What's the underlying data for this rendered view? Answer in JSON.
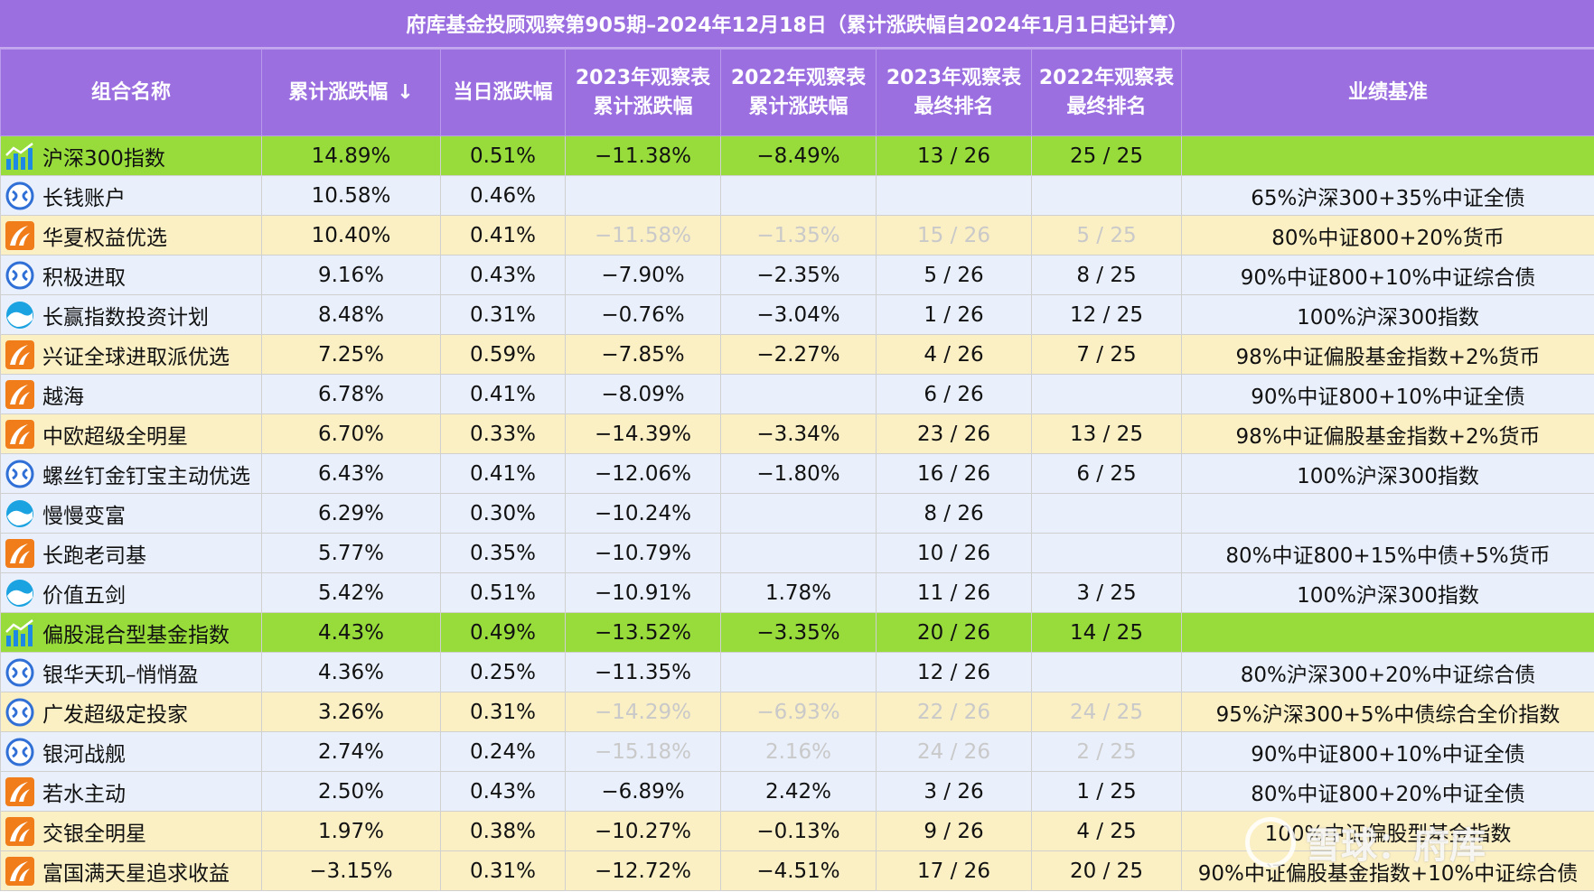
{
  "title": "府库基金投顾观察第905期–2024年12月18日（累计涨跌幅自2024年1月1日起计算）",
  "headers": {
    "name": "组合名称",
    "cumulative": "累计涨跌幅",
    "sort_icon": "↓",
    "daily": "当日涨跌幅",
    "y2023_cum": "2023年观察表 累计涨跌幅",
    "y2022_cum": "2022年观察表 累计涨跌幅",
    "y2023_rank": "2023年观察表 最终排名",
    "y2022_rank": "2022年观察表 最终排名",
    "benchmark": "业绩基准"
  },
  "colors": {
    "header_bg": "#9b6fe0",
    "row_blue": "#e9f0fb",
    "row_yellow": "#fbefc4",
    "row_green": "#98dc3c",
    "muted_text": "#c9c9c9"
  },
  "watermark": {
    "text": "雪球：府库"
  },
  "rows": [
    {
      "icon": "chart-icon",
      "style": "green",
      "name": "沪深300指数",
      "cum": "14.89%",
      "daily": "0.51%",
      "c2023": "−11.38%",
      "c2022": "−8.49%",
      "r2023": "13 / 26",
      "r2022": "25 / 25",
      "bench": "",
      "muted": false
    },
    {
      "icon": "blue-ring-icon",
      "style": "blue",
      "name": "长钱账户",
      "cum": "10.58%",
      "daily": "0.46%",
      "c2023": "",
      "c2022": "",
      "r2023": "",
      "r2022": "",
      "bench": "65%沪深300+35%中证全债",
      "muted": false
    },
    {
      "icon": "orange-swoosh-icon",
      "style": "yellow",
      "name": "华夏权益优选",
      "cum": "10.40%",
      "daily": "0.41%",
      "c2023": "−11.58%",
      "c2022": "−1.35%",
      "r2023": "15 / 26",
      "r2022": "5 / 25",
      "bench": "80%中证800+20%货币",
      "muted": true
    },
    {
      "icon": "blue-ring-icon",
      "style": "blue",
      "name": "积极进取",
      "cum": "9.16%",
      "daily": "0.43%",
      "c2023": "−7.90%",
      "c2022": "−2.35%",
      "r2023": "5 / 26",
      "r2022": "8 / 25",
      "bench": "90%中证800+10%中证综合债",
      "muted": false
    },
    {
      "icon": "wave-icon",
      "style": "blue",
      "name": "长赢指数投资计划",
      "cum": "8.48%",
      "daily": "0.31%",
      "c2023": "−0.76%",
      "c2022": "−3.04%",
      "r2023": "1 / 26",
      "r2022": "12 / 25",
      "bench": "100%沪深300指数",
      "muted": false
    },
    {
      "icon": "orange-swoosh-icon",
      "style": "yellow",
      "name": "兴证全球进取派优选",
      "cum": "7.25%",
      "daily": "0.59%",
      "c2023": "−7.85%",
      "c2022": "−2.27%",
      "r2023": "4 / 26",
      "r2022": "7 / 25",
      "bench": "98%中证偏股基金指数+2%货币",
      "muted": false
    },
    {
      "icon": "orange-swoosh-icon",
      "style": "blue",
      "name": "越海",
      "cum": "6.78%",
      "daily": "0.41%",
      "c2023": "−8.09%",
      "c2022": "",
      "r2023": "6 / 26",
      "r2022": "",
      "bench": "90%中证800+10%中证全债",
      "muted": false
    },
    {
      "icon": "orange-swoosh-icon",
      "style": "yellow",
      "name": "中欧超级全明星",
      "cum": "6.70%",
      "daily": "0.33%",
      "c2023": "−14.39%",
      "c2022": "−3.34%",
      "r2023": "23 / 26",
      "r2022": "13 / 25",
      "bench": "98%中证偏股基金指数+2%货币",
      "muted": false
    },
    {
      "icon": "blue-ring-icon",
      "style": "blue",
      "name": "螺丝钉金钉宝主动优选",
      "cum": "6.43%",
      "daily": "0.41%",
      "c2023": "−12.06%",
      "c2022": "−1.80%",
      "r2023": "16 / 26",
      "r2022": "6 / 25",
      "bench": "100%沪深300指数",
      "muted": false
    },
    {
      "icon": "wave-icon",
      "style": "blue",
      "name": "慢慢变富",
      "cum": "6.29%",
      "daily": "0.30%",
      "c2023": "−10.24%",
      "c2022": "",
      "r2023": "8 / 26",
      "r2022": "",
      "bench": "",
      "muted": false
    },
    {
      "icon": "orange-swoosh-icon",
      "style": "blue",
      "name": "长跑老司基",
      "cum": "5.77%",
      "daily": "0.35%",
      "c2023": "−10.79%",
      "c2022": "",
      "r2023": "10 / 26",
      "r2022": "",
      "bench": "80%中证800+15%中债+5%货币",
      "muted": false
    },
    {
      "icon": "wave-icon",
      "style": "blue",
      "name": "价值五剑",
      "cum": "5.42%",
      "daily": "0.51%",
      "c2023": "−10.91%",
      "c2022": "1.78%",
      "r2023": "11 / 26",
      "r2022": "3 / 25",
      "bench": "100%沪深300指数",
      "muted": false
    },
    {
      "icon": "chart-icon",
      "style": "green",
      "name": "偏股混合型基金指数",
      "cum": "4.43%",
      "daily": "0.49%",
      "c2023": "−13.52%",
      "c2022": "−3.35%",
      "r2023": "20 / 26",
      "r2022": "14 / 25",
      "bench": "",
      "muted": false
    },
    {
      "icon": "blue-ring-icon",
      "style": "blue",
      "name": "银华天玑–悄悄盈",
      "cum": "4.36%",
      "daily": "0.25%",
      "c2023": "−11.35%",
      "c2022": "",
      "r2023": "12 / 26",
      "r2022": "",
      "bench": "80%沪深300+20%中证综合债",
      "muted": false
    },
    {
      "icon": "blue-ring-icon",
      "style": "yellow",
      "name": "广发超级定投家",
      "cum": "3.26%",
      "daily": "0.31%",
      "c2023": "−14.29%",
      "c2022": "−6.93%",
      "r2023": "22 / 26",
      "r2022": "24 / 25",
      "bench": "95%沪深300+5%中债综合全价指数",
      "muted": true
    },
    {
      "icon": "blue-ring-icon",
      "style": "blue",
      "name": "银河战舰",
      "cum": "2.74%",
      "daily": "0.24%",
      "c2023": "−15.18%",
      "c2022": "2.16%",
      "r2023": "24 / 26",
      "r2022": "2 / 25",
      "bench": "90%中证800+10%中证全债",
      "muted": true
    },
    {
      "icon": "orange-swoosh-icon",
      "style": "blue",
      "name": "若水主动",
      "cum": "2.50%",
      "daily": "0.43%",
      "c2023": "−6.89%",
      "c2022": "2.42%",
      "r2023": "3 / 26",
      "r2022": "1 / 25",
      "bench": "80%中证800+20%中证全债",
      "muted": false
    },
    {
      "icon": "orange-swoosh-icon",
      "style": "yellow",
      "name": "交银全明星",
      "cum": "1.97%",
      "daily": "0.38%",
      "c2023": "−10.27%",
      "c2022": "−0.13%",
      "r2023": "9 / 26",
      "r2022": "4 / 25",
      "bench": "100%中证偏股型基金指数",
      "muted": false
    },
    {
      "icon": "orange-swoosh-icon",
      "style": "yellow",
      "name": "富国满天星追求收益",
      "cum": "−3.15%",
      "daily": "0.31%",
      "c2023": "−12.72%",
      "c2022": "−4.51%",
      "r2023": "17 / 26",
      "r2022": "20 / 25",
      "bench": "90%中证偏股基金指数+10%中证综合债",
      "muted": false
    }
  ]
}
